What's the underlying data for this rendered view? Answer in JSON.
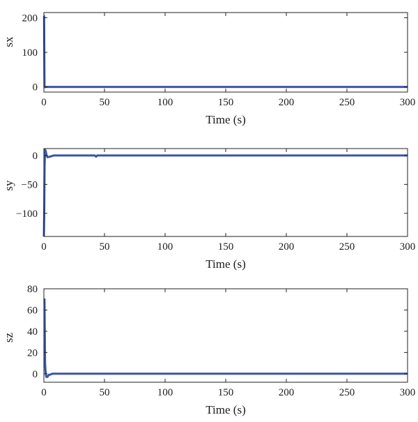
{
  "chart_data": [
    {
      "type": "line",
      "xlabel": "Time (s)",
      "ylabel": "sx",
      "xlim": [
        0,
        300
      ],
      "ylim": [
        -15,
        215
      ],
      "xticks": [
        0,
        50,
        100,
        150,
        200,
        250,
        300
      ],
      "yticks": [
        0,
        100,
        200
      ],
      "grid": false,
      "line_color": "#3a56a8",
      "series": [
        {
          "x": [
            0,
            0.2,
            0.5,
            1,
            1.5,
            2,
            3,
            5,
            10,
            50,
            100,
            150,
            200,
            250,
            300
          ],
          "y": [
            205,
            205,
            0,
            -1,
            0,
            0,
            0,
            0,
            0,
            0,
            0,
            0,
            0,
            0,
            0
          ]
        }
      ]
    },
    {
      "type": "line",
      "xlabel": "Time (s)",
      "ylabel": "sy",
      "xlim": [
        0,
        300
      ],
      "ylim": [
        -140,
        12
      ],
      "xticks": [
        0,
        50,
        100,
        150,
        200,
        250,
        300
      ],
      "yticks": [
        0,
        -50,
        -100
      ],
      "grid": false,
      "line_color": "#3a56a8",
      "series": [
        {
          "x": [
            0,
            0.3,
            0.6,
            1,
            1.5,
            2,
            3,
            5,
            8,
            42,
            43,
            44,
            100,
            150,
            203,
            250,
            300
          ],
          "y": [
            -140,
            -100,
            -20,
            10,
            8,
            2,
            -3,
            -2,
            0,
            0,
            -2,
            0,
            0,
            0,
            0,
            0,
            0
          ]
        }
      ]
    },
    {
      "type": "line",
      "xlabel": "Time (s)",
      "ylabel": "sz",
      "xlim": [
        0,
        300
      ],
      "ylim": [
        -8,
        80
      ],
      "xticks": [
        0,
        50,
        100,
        150,
        200,
        250,
        300
      ],
      "yticks": [
        0,
        20,
        40,
        60,
        80
      ],
      "grid": false,
      "line_color": "#3a56a8",
      "series": [
        {
          "x": [
            0,
            0.5,
            1,
            1.5,
            2,
            3,
            4,
            5,
            7,
            10,
            50,
            100,
            150,
            200,
            250,
            275,
            300
          ],
          "y": [
            70,
            70,
            10,
            0,
            -3,
            -3,
            -1,
            -1,
            0,
            0,
            0,
            0,
            0,
            0,
            0,
            0,
            0
          ]
        }
      ]
    }
  ]
}
